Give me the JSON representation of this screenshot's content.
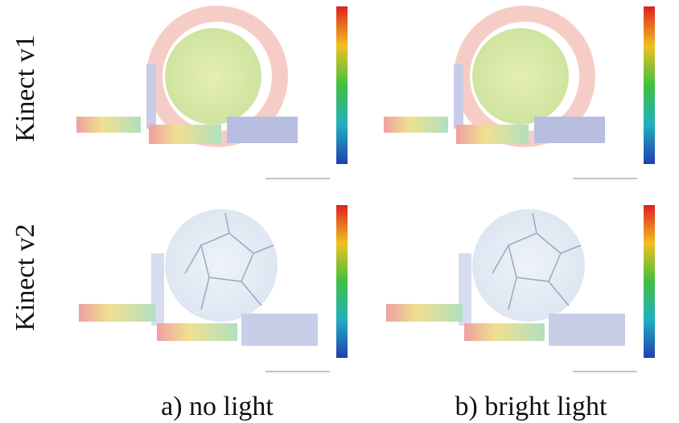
{
  "rows": [
    "Kinect v1",
    "Kinect v2"
  ],
  "captions": [
    "a) no light",
    "b) bright light"
  ]
}
